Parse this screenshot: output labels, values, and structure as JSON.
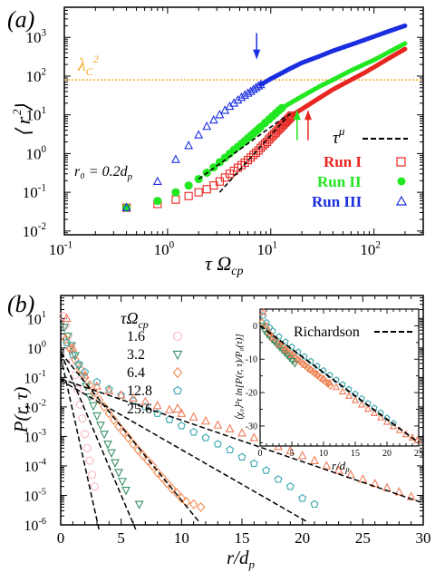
{
  "chart_data": [
    {
      "panel_label": "(a)",
      "type": "scatter",
      "x_scale": "log",
      "y_scale": "log",
      "xlim": [
        0.1,
        300
      ],
      "ylim": [
        0.008,
        6000
      ],
      "xticks": [
        0.1,
        1,
        10,
        100
      ],
      "xtick_labels": [
        "10",
        "10",
        "10",
        "10"
      ],
      "xtick_exps": [
        "-1",
        "0",
        "1",
        "2"
      ],
      "yticks": [
        0.01,
        0.1,
        1,
        10,
        100,
        1000
      ],
      "ytick_labels": [
        "10",
        "10",
        "10",
        "10",
        "10",
        "10"
      ],
      "ytick_exps": [
        "-2",
        "-1",
        "0",
        "1",
        "2",
        "3"
      ],
      "xlabel": "τ Ω",
      "xlabel_sub": "cp",
      "ylabel": "⟨ r ⟩",
      "ylabel_sup": "2",
      "hline": {
        "y": 80,
        "label": "λ",
        "label_sub": "C",
        "label_sup": "2",
        "color": "#f5a623"
      },
      "annotation": "r₀ = 0.2d",
      "annotation_sub": "p",
      "legend": {
        "placement": "bottom-right",
        "fit_label": "τ",
        "fit_sup": "μ"
      },
      "series": [
        {
          "name": "Run I",
          "marker": "square",
          "color": "#e8251f",
          "x": [
            0.4,
            0.8,
            1.2,
            1.6,
            2.0,
            2.4,
            2.8,
            3.2,
            3.6,
            4.0,
            4.4,
            4.8,
            5.2,
            5.6,
            6.0,
            6.4,
            6.8,
            7.2,
            7.6,
            8.0,
            8.4,
            8.8,
            9.2,
            9.6,
            10,
            10.4,
            10.8,
            11.2,
            11.6,
            12,
            12.4,
            12.8,
            13.2,
            13.6,
            14,
            14.4,
            14.8,
            15.2,
            15.6,
            16
          ],
          "y": [
            0.04,
            0.05,
            0.065,
            0.08,
            0.1,
            0.12,
            0.15,
            0.19,
            0.24,
            0.3,
            0.36,
            0.43,
            0.5,
            0.58,
            0.68,
            0.79,
            0.92,
            1.05,
            1.2,
            1.4,
            1.6,
            1.8,
            2.0,
            2.3,
            2.6,
            2.9,
            3.2,
            3.5,
            3.9,
            4.3,
            4.7,
            5.1,
            5.6,
            6.1,
            6.6,
            7.1,
            7.7,
            8.3,
            8.9,
            9.6
          ],
          "curve_x": [
            16,
            20,
            30,
            40,
            60,
            80,
            100,
            140,
            200
          ],
          "curve_y": [
            9.6,
            14,
            28,
            45,
            80,
            120,
            170,
            290,
            500
          ],
          "arrow": {
            "x": 23,
            "y_from": 2.2,
            "y_to": 12,
            "color": "#e8251f"
          }
        },
        {
          "name": "Run II",
          "marker": "circle",
          "color": "#22e822",
          "x": [
            0.4,
            0.8,
            1.2,
            1.6,
            2.0,
            2.4,
            2.8,
            3.2,
            3.6,
            4.0,
            4.4,
            4.8,
            5.2,
            5.6,
            6.0,
            6.4,
            6.8,
            7.2,
            7.6,
            8.0,
            8.8,
            9.6,
            10.4,
            11.2,
            12,
            12.8
          ],
          "y": [
            0.04,
            0.06,
            0.1,
            0.15,
            0.22,
            0.32,
            0.44,
            0.6,
            0.78,
            1.0,
            1.25,
            1.5,
            1.8,
            2.1,
            2.5,
            2.9,
            3.3,
            3.8,
            4.3,
            4.9,
            6.2,
            7.6,
            9.2,
            11,
            13,
            15
          ],
          "curve_x": [
            12.8,
            20,
            30,
            40,
            60,
            80,
            100,
            140,
            200
          ],
          "curve_y": [
            15,
            30,
            55,
            80,
            140,
            200,
            260,
            420,
            700
          ],
          "arrow": {
            "x": 18,
            "y_from": 2.2,
            "y_to": 12,
            "color": "#22e822"
          }
        },
        {
          "name": "Run III",
          "marker": "triangle",
          "color": "#1a2ee0",
          "x": [
            0.4,
            0.8,
            1.2,
            1.6,
            2.0,
            2.4,
            2.8,
            3.2,
            3.6,
            4.0,
            4.4,
            4.8,
            5.2,
            5.6,
            6.0,
            6.4,
            6.8,
            7.2,
            7.6,
            8.0
          ],
          "y": [
            0.04,
            0.19,
            0.7,
            1.6,
            3.0,
            5.0,
            7.3,
            10,
            13,
            16.5,
            20,
            24,
            28,
            32,
            36,
            40,
            45,
            50,
            55,
            60
          ],
          "curve_x": [
            8,
            10,
            15,
            20,
            30,
            40,
            60,
            80,
            100,
            140,
            200
          ],
          "curve_y": [
            60,
            85,
            150,
            220,
            330,
            450,
            650,
            850,
            1050,
            1450,
            2000
          ],
          "arrow": {
            "x": 7.3,
            "y_from": 1300,
            "y_to": 300,
            "color": "#1a2ee0"
          }
        }
      ],
      "fits": [
        {
          "x": [
            2.0,
            14
          ],
          "y": [
            0.22,
            9.2
          ]
        },
        {
          "x": [
            3.2,
            16
          ],
          "y": [
            0.1,
            12
          ]
        }
      ]
    },
    {
      "panel_label": "(b)",
      "type": "scatter",
      "x_scale": "linear",
      "y_scale": "log",
      "xlim": [
        0,
        30
      ],
      "ylim": [
        1e-06,
        60
      ],
      "xticks": [
        0,
        5,
        10,
        15,
        20,
        25,
        30
      ],
      "xtick_labels": [
        "0",
        "5",
        "10",
        "15",
        "20",
        "25",
        "30"
      ],
      "yticks": [
        1e-06,
        1e-05,
        0.0001,
        0.001,
        0.01,
        0.1,
        1,
        10
      ],
      "ytick_labels": [
        "10",
        "10",
        "10",
        "10",
        "10",
        "10",
        "10",
        "10"
      ],
      "ytick_exps": [
        "-6",
        "-5",
        "-4",
        "-3",
        "-2",
        "-1",
        "0",
        "1"
      ],
      "xlabel": "r/d",
      "xlabel_sub": "p",
      "ylabel": "P(r, τ)",
      "legend": {
        "placement": "top-left",
        "title": "τΩ",
        "title_sub": "cp"
      },
      "series": [
        {
          "name": "1.6",
          "marker": "circle",
          "color": "#f7b8c0",
          "x": [
            0.2,
            0.4,
            0.6,
            0.8,
            1.0,
            1.2,
            1.4,
            1.6,
            1.8,
            2.0,
            2.2,
            2.4,
            2.6,
            2.8
          ],
          "y": [
            12,
            6,
            2.5,
            1.0,
            0.35,
            0.12,
            0.04,
            0.012,
            0.004,
            0.0012,
            0.0004,
            0.00015,
            5e-05,
            2e-05
          ],
          "fit_x": [
            0,
            3.2
          ],
          "fit_y": [
            0.5,
            6e-07
          ]
        },
        {
          "name": "3.2",
          "marker": "triangle-down",
          "color": "#3a8f66",
          "x": [
            0.3,
            0.6,
            0.9,
            1.2,
            1.5,
            1.8,
            2.1,
            2.4,
            2.7,
            3.0,
            3.3,
            3.6,
            3.9,
            4.2,
            4.5,
            4.8,
            5.1,
            5.4,
            6.5
          ],
          "y": [
            5,
            2.5,
            1.2,
            0.55,
            0.25,
            0.11,
            0.05,
            0.022,
            0.011,
            0.005,
            0.0024,
            0.0012,
            0.00055,
            0.00028,
            0.00013,
            6e-05,
            3e-05,
            1.5e-05,
            5e-06
          ],
          "fit_x": [
            0,
            6.2
          ],
          "fit_y": [
            0.7,
            7e-07
          ]
        },
        {
          "name": "6.4",
          "marker": "diamond",
          "color": "#f28a50",
          "x": [
            0.4,
            0.8,
            1.2,
            1.6,
            2.0,
            2.4,
            2.8,
            3.2,
            3.6,
            4.0,
            4.4,
            4.8,
            5.2,
            5.6,
            6.0,
            6.4,
            6.8,
            7.2,
            7.6,
            8.0,
            8.4,
            8.8,
            9.2,
            9.6,
            10,
            10.4,
            11,
            11.6
          ],
          "y": [
            2,
            0.9,
            0.4,
            0.2,
            0.1,
            0.055,
            0.03,
            0.017,
            0.01,
            0.006,
            0.0036,
            0.0022,
            0.0014,
            0.0009,
            0.00055,
            0.00035,
            0.00023,
            0.00015,
            0.0001,
            6e-05,
            4e-05,
            2.6e-05,
            1.7e-05,
            1.2e-05,
            8e-06,
            6e-06,
            5e-06,
            4e-06
          ],
          "fit_x": [
            0,
            11.5
          ],
          "fit_y": [
            0.7,
            1.2e-06
          ]
        },
        {
          "name": "12.8",
          "marker": "pentagon",
          "color": "#3aa6b0",
          "x": [
            0.5,
            1.0,
            1.5,
            2.0,
            3.0,
            4.0,
            5.0,
            6.0,
            7.0,
            8.0,
            9.0,
            10,
            11,
            12,
            13,
            14,
            15,
            16,
            17,
            18,
            19,
            20,
            21
          ],
          "y": [
            1.5,
            0.6,
            0.28,
            0.15,
            0.07,
            0.04,
            0.025,
            0.016,
            0.01,
            0.006,
            0.0037,
            0.0023,
            0.0014,
            0.0009,
            0.00055,
            0.00035,
            0.0002,
            0.00012,
            7e-05,
            3.5e-05,
            2e-05,
            8e-06,
            5e-06
          ],
          "fit_x": [
            0,
            20.5
          ],
          "fit_y": [
            0.08,
            1.2e-06
          ]
        },
        {
          "name": "25.6",
          "marker": "triangle",
          "color": "#f07a5a",
          "x": [
            0.5,
            1.0,
            2.0,
            3.0,
            4.0,
            5.0,
            6.0,
            7.0,
            8.0,
            9.0,
            10,
            11,
            12,
            13,
            14,
            15,
            16,
            17,
            18,
            19,
            20,
            21,
            22,
            23,
            24,
            25,
            26,
            27,
            28,
            29
          ],
          "y": [
            10,
            1.0,
            0.12,
            0.05,
            0.035,
            0.025,
            0.02,
            0.015,
            0.011,
            0.008,
            0.006,
            0.0045,
            0.0033,
            0.0024,
            0.0018,
            0.0013,
            0.0009,
            0.00065,
            0.00045,
            0.00032,
            0.00022,
            0.00015,
            0.0001,
            7e-05,
            5e-05,
            3.5e-05,
            2.5e-05,
            1.8e-05,
            1.3e-05,
            9e-06
          ],
          "fit_x": [
            0,
            30
          ],
          "fit_y": [
            0.09,
            5.5e-06
          ]
        }
      ],
      "inset": {
        "xlim": [
          0,
          25
        ],
        "ylim": [
          -36,
          5
        ],
        "xticks": [
          0,
          5,
          10,
          15,
          20,
          25
        ],
        "xtick_labels": [
          "0",
          "5",
          "10",
          "15",
          "20",
          "25"
        ],
        "yticks": [
          0,
          -10,
          -20,
          -30
        ],
        "ytick_labels": [
          "0",
          "-10",
          "-20",
          "-30"
        ],
        "xlabel": "r/d",
        "xlabel_sub": "p",
        "ylabel": "⟨χ₀⟩²τ ln[P(r, τ)/P₀(τ)]",
        "legend_label": "Richardson",
        "fit_x": [
          0,
          25
        ],
        "fit_y": [
          0,
          -35
        ],
        "series": [
          {
            "name": "6.4",
            "marker": "diamond",
            "color": "#f28a50",
            "x": [
              0.3,
              0.7,
              1.1,
              1.5,
              1.9,
              2.3,
              2.7,
              3.1,
              3.5,
              3.9,
              4.3,
              4.7,
              5.1,
              5.5,
              5.9,
              6.3,
              6.7,
              7.1,
              7.5,
              7.9,
              8.3,
              8.7,
              9.1,
              9.5,
              9.9,
              10.3,
              10.7,
              11.1
            ],
            "y": [
              1,
              -1,
              -2,
              -2.8,
              -3.5,
              -4.2,
              -4.9,
              -5.6,
              -6.3,
              -7.0,
              -7.6,
              -8.2,
              -8.8,
              -9.5,
              -10.1,
              -10.7,
              -11.3,
              -11.9,
              -12.5,
              -13.1,
              -13.7,
              -14.3,
              -14.9,
              -15.5,
              -16.1,
              -16.7,
              -17.3,
              -17.9
            ]
          },
          {
            "name": "12.8",
            "marker": "pentagon",
            "color": "#3aa6b0",
            "x": [
              0.5,
              1.0,
              1.5,
              2.0,
              3.0,
              4.0,
              5.0,
              6.0,
              7.0,
              8.0,
              9.0,
              10,
              11,
              12,
              13,
              14,
              15,
              16,
              17,
              18,
              19,
              20,
              21
            ],
            "y": [
              3,
              1,
              -0.5,
              -1.5,
              -3.2,
              -4.8,
              -6.3,
              -7.8,
              -9.2,
              -10.6,
              -12.0,
              -13.4,
              -14.8,
              -16.2,
              -17.6,
              -19.0,
              -20.4,
              -21.8,
              -23.2,
              -24.6,
              -26,
              -27.6,
              -29.2
            ]
          },
          {
            "name": "3.2",
            "marker": "triangle-down",
            "color": "#3a8f66",
            "x": [
              0.3,
              0.7,
              1.1,
              1.5,
              1.9,
              2.3,
              2.7,
              3.1,
              3.5,
              3.9,
              4.3,
              4.7,
              5.1,
              5.5
            ],
            "y": [
              0,
              -1.5,
              -2.5,
              -3.3,
              -4.1,
              -4.9,
              -5.7,
              -6.5,
              -7.3,
              -8.1,
              -8.9,
              -9.7,
              -10.5,
              -11.3
            ]
          },
          {
            "name": "25.6",
            "marker": "triangle",
            "color": "#f07a5a",
            "x": [
              0.5,
              1.0,
              1.5,
              2.0,
              3.0,
              4.0,
              5.0,
              6.0,
              7.0,
              8.0,
              9.0,
              10,
              11,
              12,
              13,
              14,
              15,
              16,
              17,
              18,
              19,
              20,
              21,
              22,
              23,
              24,
              24.8
            ],
            "y": [
              4,
              0,
              -2,
              -3.5,
              -5.5,
              -7.2,
              -8.8,
              -10.3,
              -11.7,
              -13.1,
              -14.4,
              -15.8,
              -17.1,
              -18.4,
              -19.7,
              -21.0,
              -22.3,
              -23.6,
              -24.9,
              -26.2,
              -27.5,
              -28.8,
              -30.1,
              -31.3,
              -32.5,
              -33.5,
              -34.3
            ]
          }
        ]
      }
    }
  ]
}
